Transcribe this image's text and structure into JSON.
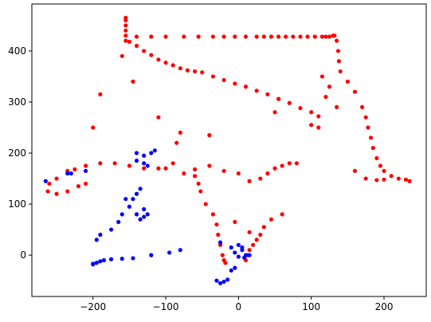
{
  "chart_data": {
    "type": "scatter",
    "xlim": [
      -284,
      258
    ],
    "ylim": [
      -81,
      492
    ],
    "xticks": [
      {
        "value": -200,
        "label": "−200"
      },
      {
        "value": -100,
        "label": "−100"
      },
      0,
      100,
      200
    ],
    "yticks": [
      0,
      100,
      200,
      300,
      400
    ],
    "grid": false,
    "series": [
      {
        "color": "#ff0000",
        "x": [
          -140,
          -120,
          -100,
          -75,
          -55,
          -35,
          -20,
          -5,
          10,
          25,
          35,
          45,
          55,
          65,
          75,
          85,
          95,
          105,
          115,
          120,
          125,
          130,
          -155,
          -155,
          -155,
          -155,
          -155,
          -155,
          -150,
          -140,
          -130,
          -120,
          -110,
          -100,
          -90,
          -80,
          -70,
          -60,
          -50,
          -35,
          -20,
          -5,
          10,
          25,
          40,
          55,
          70,
          85,
          100,
          110,
          132,
          135,
          137,
          138,
          140,
          150,
          160,
          170,
          175,
          178,
          182,
          185,
          190,
          195,
          200,
          210,
          220,
          230,
          235,
          175,
          190,
          200,
          160,
          135,
          125,
          115,
          120,
          110,
          100,
          80,
          70,
          60,
          50,
          40,
          30,
          15,
          0,
          -20,
          -40,
          -60,
          -75,
          -90,
          -100,
          -110,
          -130,
          -150,
          -170,
          -190,
          -210,
          -225,
          -235,
          -250,
          -260,
          -262,
          -250,
          -235,
          -220,
          -210,
          -60,
          -55,
          -52,
          -45,
          -35,
          -30,
          -28,
          -25,
          -22,
          -20,
          -18,
          10,
          12,
          15,
          20,
          25,
          30,
          35,
          45,
          60,
          15,
          -5,
          -40,
          -85,
          -110,
          -145,
          -160,
          -200,
          -190,
          -80,
          50
        ],
        "y": [
          428,
          428,
          428,
          428,
          428,
          428,
          428,
          428,
          428,
          428,
          428,
          428,
          428,
          428,
          428,
          428,
          428,
          428,
          428,
          428,
          428,
          430,
          420,
          430,
          440,
          450,
          460,
          465,
          418,
          410,
          400,
          392,
          383,
          377,
          372,
          366,
          362,
          360,
          358,
          350,
          343,
          336,
          330,
          322,
          315,
          306,
          298,
          288,
          280,
          272,
          430,
          420,
          400,
          380,
          360,
          340,
          320,
          290,
          270,
          250,
          230,
          210,
          190,
          175,
          165,
          155,
          150,
          148,
          145,
          150,
          147,
          148,
          165,
          290,
          330,
          350,
          310,
          250,
          255,
          180,
          180,
          175,
          170,
          160,
          150,
          145,
          160,
          165,
          175,
          168,
          160,
          180,
          170,
          170,
          170,
          175,
          180,
          180,
          175,
          168,
          165,
          150,
          140,
          125,
          120,
          125,
          135,
          140,
          155,
          140,
          125,
          100,
          80,
          60,
          40,
          20,
          0,
          -10,
          -15,
          -10,
          0,
          10,
          20,
          30,
          40,
          55,
          70,
          80,
          45,
          65,
          235,
          220,
          270,
          340,
          390,
          250,
          315,
          240,
          280
        ]
      },
      {
        "color": "#0000ff",
        "x": [
          -200,
          -195,
          -190,
          -185,
          -175,
          -160,
          -145,
          -120,
          -95,
          -80,
          -200,
          -195,
          -190,
          -175,
          -165,
          -160,
          -150,
          -145,
          -140,
          -135,
          -140,
          -130,
          -135,
          -130,
          -125,
          -140,
          -130,
          -120,
          -115,
          -140,
          -130,
          -125,
          -155,
          -210,
          -235,
          -265,
          -230,
          -30,
          -25,
          -20,
          -15,
          -10,
          -5,
          -10,
          0,
          5,
          10,
          8,
          0,
          -5,
          -25,
          15,
          5
        ],
        "y": [
          -17,
          -15,
          -12,
          -10,
          -8,
          -7,
          -6,
          0,
          5,
          10,
          -18,
          30,
          40,
          50,
          65,
          80,
          95,
          110,
          120,
          130,
          80,
          90,
          70,
          75,
          80,
          185,
          195,
          200,
          205,
          200,
          180,
          175,
          110,
          165,
          160,
          145,
          160,
          -50,
          -55,
          -52,
          -48,
          -30,
          -25,
          15,
          20,
          10,
          0,
          -5,
          -3,
          5,
          25,
          0,
          15
        ]
      }
    ]
  }
}
